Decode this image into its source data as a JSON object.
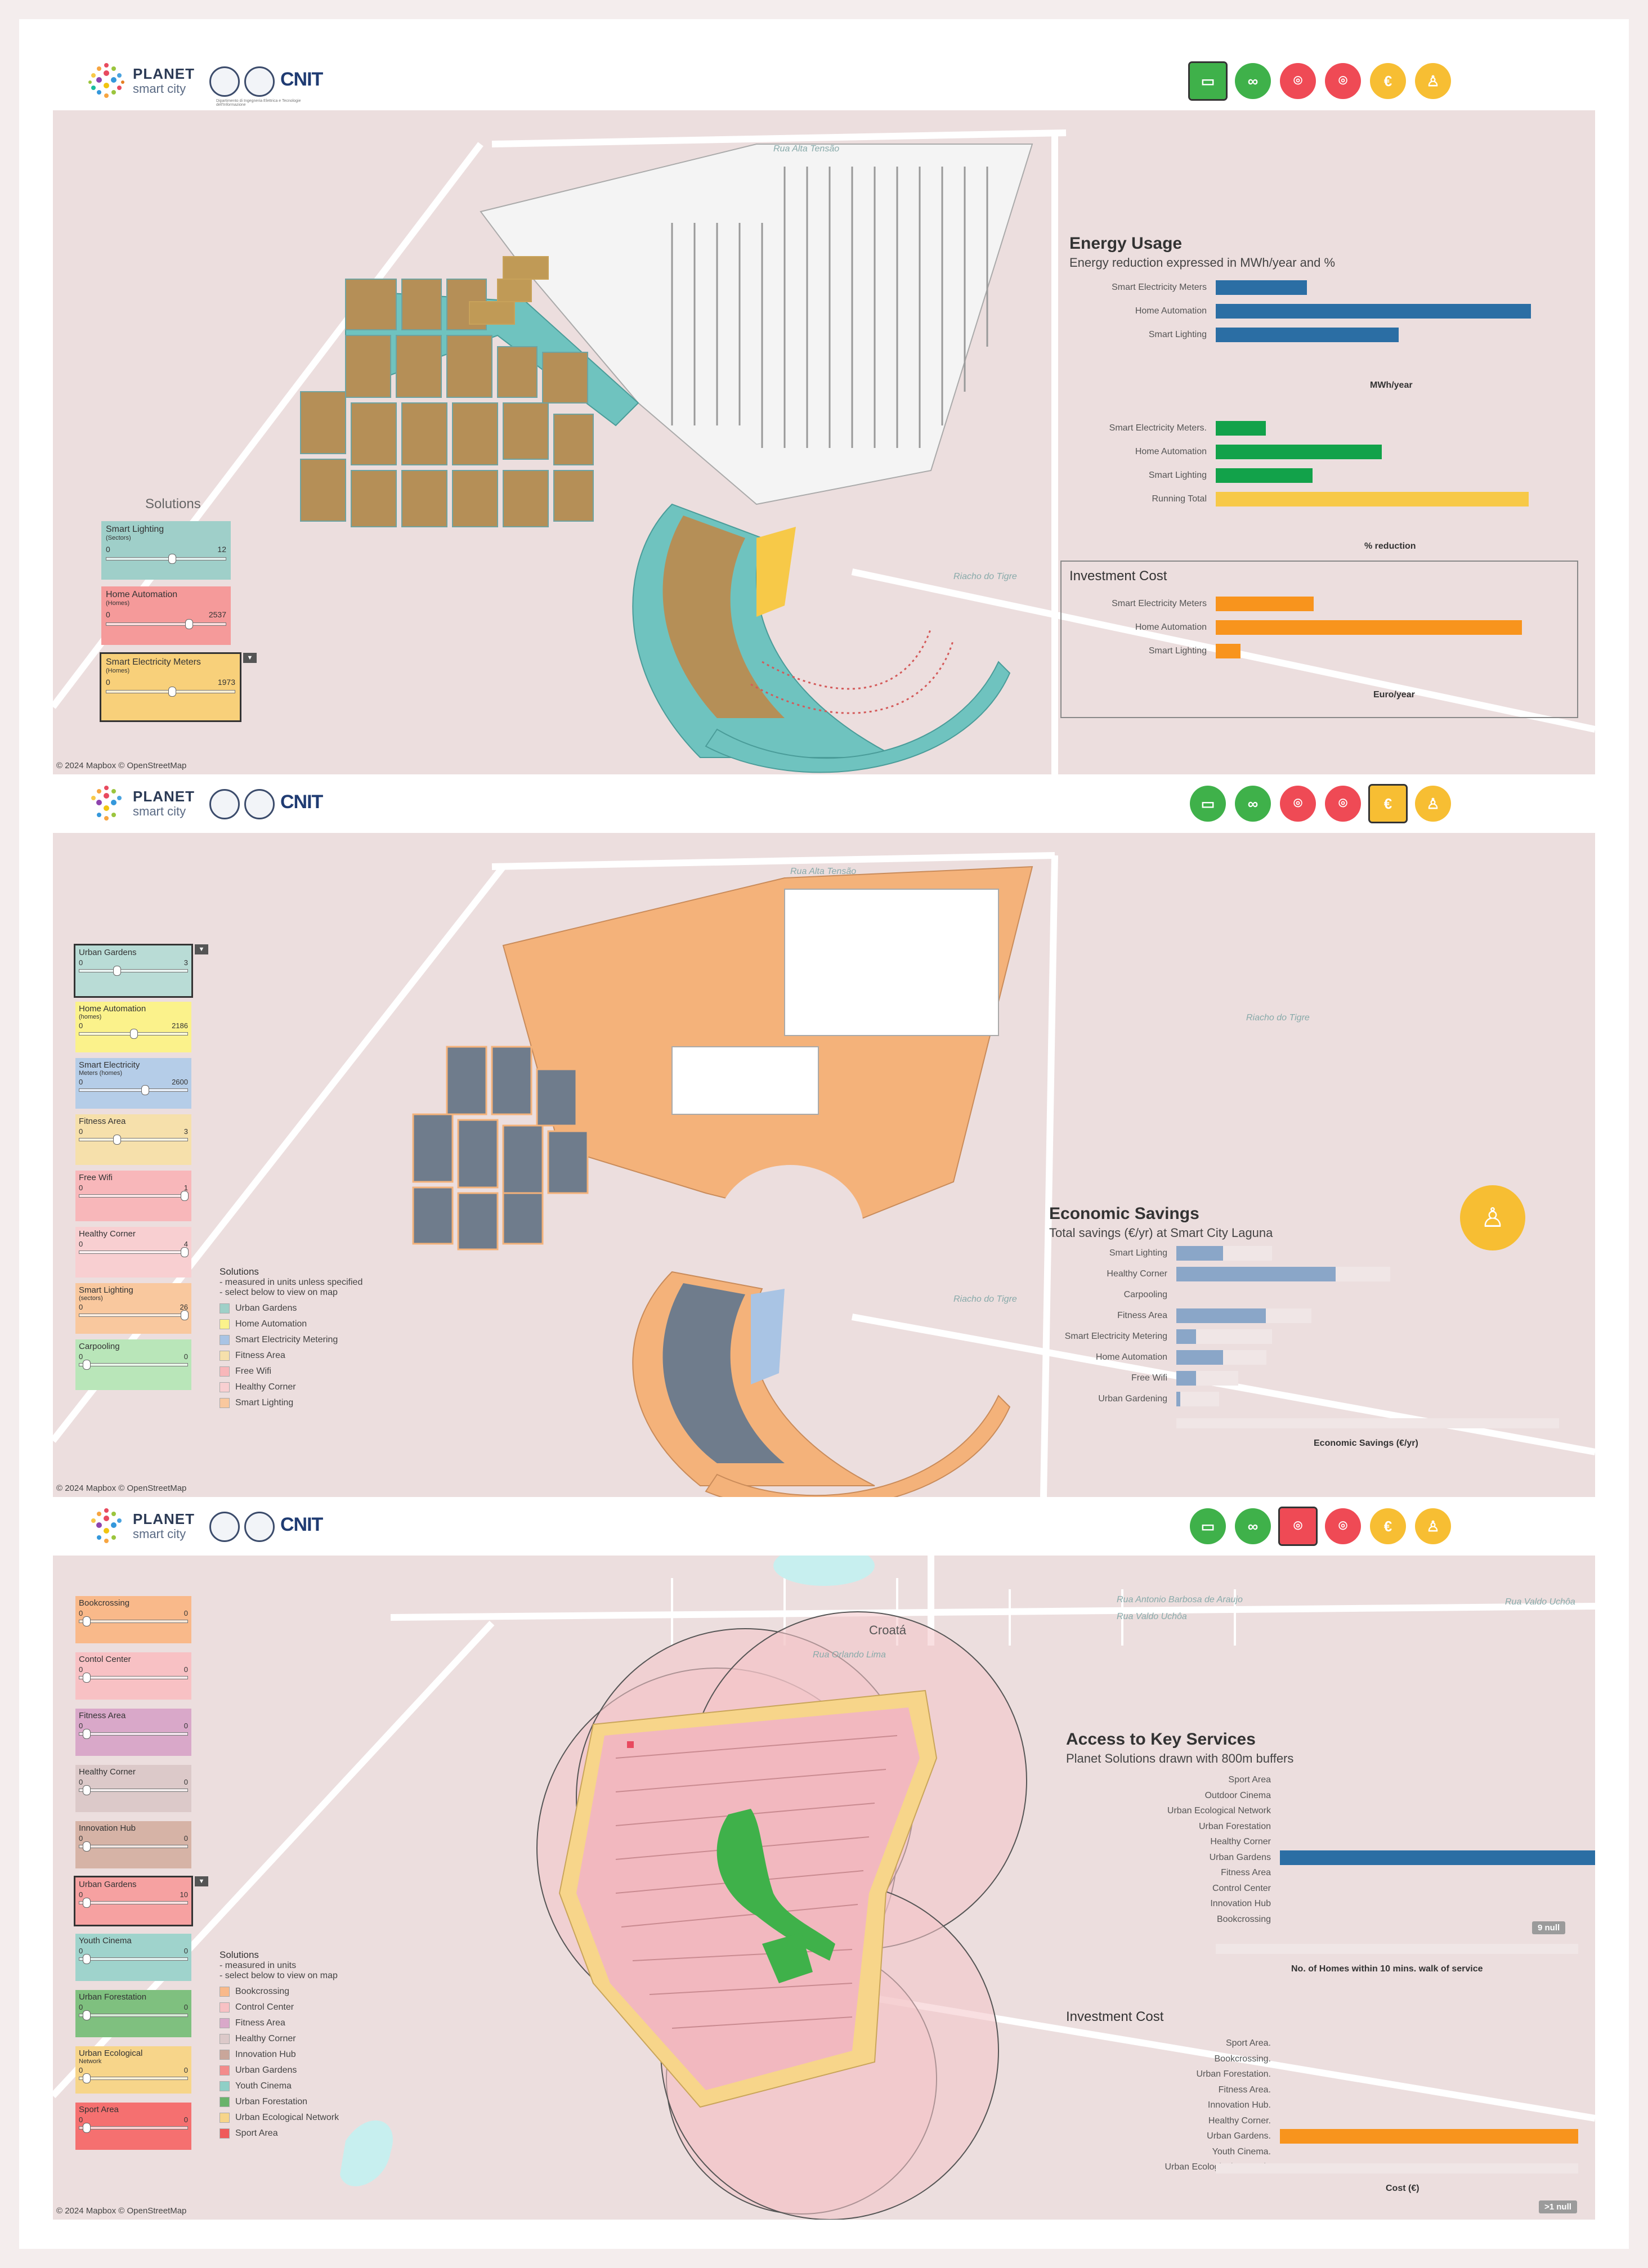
{
  "header": {
    "logo_line1": "PLANET",
    "logo_line2": "smart city",
    "partner": "CNIT",
    "partner_sub": "Dipartimento di Ingegneria Elettrica e Tecnologie dell'Informazione"
  },
  "nav_icons": [
    "smart-meter-icon",
    "bike-sharing-icon",
    "location-pin-icon",
    "location-pin-icon",
    "euro-cost-icon",
    "community-icon"
  ],
  "attribution": "© 2024 Mapbox © OpenStreetMap",
  "panel1": {
    "solutions_title": "Solutions",
    "controls": [
      {
        "title": "Smart Lighting",
        "unit": "(Sectors)",
        "min": "0",
        "max": "12",
        "color": "#9fcfc9"
      },
      {
        "title": "Home Automation",
        "unit": "(Homes)",
        "min": "0",
        "max": "2537",
        "color": "#f59a9a"
      },
      {
        "title": "Smart Electricity Meters",
        "unit": "(Homes)",
        "min": "0",
        "max": "1973",
        "color": "#f8d07a"
      }
    ],
    "energy_title": "Energy Usage",
    "energy_subtitle": "Energy reduction expressed in MWh/year and %",
    "mwh_rows": [
      {
        "label": "Smart Electricity Meters",
        "value": 0.29
      },
      {
        "label": "Home Automation",
        "value": 1.0
      },
      {
        "label": "Smart Lighting",
        "value": 0.58
      }
    ],
    "mwh_axis": "MWh/year",
    "pct_rows": [
      {
        "label": "Smart Electricity Meters.",
        "value": 0.16
      },
      {
        "label": "Home Automation",
        "value": 0.53
      },
      {
        "label": "Smart Lighting",
        "value": 0.31
      },
      {
        "label": "Running Total",
        "value": 1.0
      }
    ],
    "pct_axis": "% reduction",
    "invest_title": "Investment Cost",
    "invest_rows": [
      {
        "label": "Smart Electricity Meters",
        "value": 0.32
      },
      {
        "label": "Home Automation",
        "value": 1.0
      },
      {
        "label": "Smart Lighting",
        "value": 0.08
      }
    ],
    "invest_axis": "Euro/year",
    "map_labels": [
      "Rua Alta Tensão",
      "Riacho do Tigre"
    ]
  },
  "panel2": {
    "controls": [
      {
        "title": "Urban Gardens",
        "unit": "",
        "min": "0",
        "max": "3",
        "color": "#b9dcd6"
      },
      {
        "title": "Home Automation",
        "unit": "(homes)",
        "min": "0",
        "max": "2186",
        "color": "#fbf28b"
      },
      {
        "title": "Smart Electricity",
        "unit": "Meters (homes)",
        "min": "0",
        "max": "2600",
        "color": "#b5cde8"
      },
      {
        "title": "Fitness Area",
        "unit": "",
        "min": "0",
        "max": "3",
        "color": "#f6e0ab"
      },
      {
        "title": "Free Wifi",
        "unit": "",
        "min": "0",
        "max": "1",
        "color": "#f8b7ba"
      },
      {
        "title": "Healthy Corner",
        "unit": "",
        "min": "0",
        "max": "4",
        "color": "#f8cfd1"
      },
      {
        "title": "Smart Lighting",
        "unit": "(sectors)",
        "min": "0",
        "max": "26",
        "color": "#f9c89e"
      },
      {
        "title": "Carpooling",
        "unit": "",
        "min": "0",
        "max": "0",
        "color": "#b9e6b9"
      }
    ],
    "legend_head": "Solutions",
    "legend_sub1": "- measured in units unless specified",
    "legend_sub2": "- select below to view on map",
    "legend": [
      {
        "label": "Urban Gardens",
        "color": "#9fd0c8"
      },
      {
        "label": "Home Automation",
        "color": "#fbf28b"
      },
      {
        "label": "Smart Electricity Metering",
        "color": "#a9c4e4"
      },
      {
        "label": "Fitness Area",
        "color": "#f6e0ab"
      },
      {
        "label": "Free Wifi",
        "color": "#f8b7ba"
      },
      {
        "label": "Healthy Corner",
        "color": "#f8cfd1"
      },
      {
        "label": "Smart Lighting",
        "color": "#f9c89e"
      }
    ],
    "savings_title": "Economic Savings",
    "savings_subtitle": "Total savings (€/yr) at Smart City Laguna",
    "savings_rows": [
      {
        "label": "Smart Lighting",
        "value": 0.12
      },
      {
        "label": "Healthy Corner",
        "value": 0.41
      },
      {
        "label": "Carpooling",
        "value": 0.0
      },
      {
        "label": "Fitness Area",
        "value": 0.23
      },
      {
        "label": "Smart Electricity Metering",
        "value": 0.05
      },
      {
        "label": "Home Automation",
        "value": 0.12
      },
      {
        "label": "Free Wifi",
        "value": 0.05
      },
      {
        "label": "Urban Gardening",
        "value": 0.01
      }
    ],
    "savings_axis": "Economic Savings (€/yr)",
    "map_labels": [
      "Rua Alta Tensão",
      "Riacho do Tigre",
      "Riacho do Tigre"
    ]
  },
  "panel3": {
    "controls": [
      {
        "title": "Bookcrossing",
        "unit": "",
        "min": "0",
        "max": "0",
        "color": "#f9b98a"
      },
      {
        "title": "Contol Center",
        "unit": "",
        "min": "0",
        "max": "0",
        "color": "#f8c1c4"
      },
      {
        "title": "Fitness Area",
        "unit": "",
        "min": "0",
        "max": "0",
        "color": "#d9a8c9"
      },
      {
        "title": "Healthy Corner",
        "unit": "",
        "min": "0",
        "max": "0",
        "color": "#dcc9c9"
      },
      {
        "title": "Innovation Hub",
        "unit": "",
        "min": "0",
        "max": "0",
        "color": "#d6b3a6"
      },
      {
        "title": "Urban Gardens",
        "unit": "",
        "min": "0",
        "max": "10",
        "color": "#f6a1a1"
      },
      {
        "title": "Youth Cinema",
        "unit": "",
        "min": "0",
        "max": "0",
        "color": "#9fd3cc"
      },
      {
        "title": "Urban Forestation",
        "unit": "",
        "min": "0",
        "max": "0",
        "color": "#7fc07f"
      },
      {
        "title": "Urban Ecological",
        "unit": "Network",
        "min": "0",
        "max": "0",
        "color": "#f7d58a"
      },
      {
        "title": "Sport Area",
        "unit": "",
        "min": "0",
        "max": "0",
        "color": "#f57070"
      }
    ],
    "legend_head": "Solutions",
    "legend_sub1": "- measured in units",
    "legend_sub2": "- select below to view on map",
    "legend": [
      {
        "label": "Bookcrossing",
        "color": "#f9b98a"
      },
      {
        "label": "Control Center",
        "color": "#f8c1c4"
      },
      {
        "label": "Fitness Area",
        "color": "#d9a8c9"
      },
      {
        "label": "Healthy Corner",
        "color": "#dcc9c9"
      },
      {
        "label": "Innovation Hub",
        "color": "#c9a69a"
      },
      {
        "label": "Urban Gardens",
        "color": "#f38b8b"
      },
      {
        "label": "Youth Cinema",
        "color": "#8fcfc6"
      },
      {
        "label": "Urban Forestation",
        "color": "#69b36b"
      },
      {
        "label": "Urban Ecological Network",
        "color": "#f7d58a"
      },
      {
        "label": "Sport Area",
        "color": "#f05a5a"
      }
    ],
    "access_title": "Access to Key Services",
    "access_subtitle": "Planet Solutions drawn with 800m buffers",
    "access_rows": [
      {
        "label": "Sport Area",
        "value": 0
      },
      {
        "label": "Outdoor Cinema",
        "value": 0
      },
      {
        "label": "Urban Ecological Network",
        "value": 0
      },
      {
        "label": "Urban Forestation",
        "value": 0
      },
      {
        "label": "Healthy Corner",
        "value": 0
      },
      {
        "label": "Urban Gardens",
        "value": 1.0
      },
      {
        "label": "Fitness Area",
        "value": 0
      },
      {
        "label": "Control Center",
        "value": 0
      },
      {
        "label": "Innovation Hub",
        "value": 0
      },
      {
        "label": "Bookcrossing",
        "value": 0
      }
    ],
    "access_null": "9 null",
    "access_axis": "No. of Homes within 10 mins. walk of service",
    "invest_title": "Investment Cost",
    "invest_rows": [
      {
        "label": "Sport Area.",
        "value": 0
      },
      {
        "label": "Bookcrossing.",
        "value": 0
      },
      {
        "label": "Urban Forestation.",
        "value": 0
      },
      {
        "label": "Fitness Area.",
        "value": 0
      },
      {
        "label": "Innovation Hub.",
        "value": 0
      },
      {
        "label": "Healthy Corner.",
        "value": 0
      },
      {
        "label": "Urban Gardens.",
        "value": 1.0
      },
      {
        "label": "Youth Cinema.",
        "value": 0
      },
      {
        "label": "Urban Ecological Network.",
        "value": 0
      }
    ],
    "invest_axis": "Cost (€)",
    "invest_null": ">1 null",
    "map_labels": [
      "Croatá",
      "Rua Antonio Barbosa de Araujo",
      "Rua Valdo Uchôa",
      "Rua Orlando Lima",
      "Rua Valdo Uchôa"
    ]
  }
}
